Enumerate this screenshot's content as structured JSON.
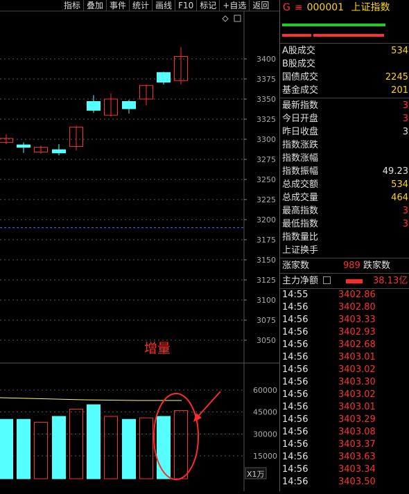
{
  "toolbar": {
    "buttons": [
      "指标",
      "叠加",
      "事件",
      "统计",
      "画线",
      "F10",
      "标记",
      "+自选",
      "返回"
    ]
  },
  "chart": {
    "price_axis": [
      "3400",
      "3375",
      "3350",
      "3325",
      "3300",
      "3275",
      "3250",
      "3225",
      "3200",
      "3175",
      "3150",
      "3125",
      "3100",
      "3075",
      "3050"
    ],
    "volume_axis": [
      "60000",
      "45000",
      "30000",
      "15000"
    ],
    "volume_unit": "X1万",
    "annotation": "增量",
    "colors": {
      "up": "#ff3030",
      "down": "#55ffff",
      "ma": "#ffff66",
      "grid": "#5a5a5a"
    }
  },
  "panel": {
    "g": "G",
    "menu": "≡",
    "code": "000001",
    "name": "上证指数",
    "stats1": [
      {
        "label": "A股成交",
        "value": "534",
        "color": "#ffd700"
      },
      {
        "label": "B股成交",
        "value": "",
        "color": "#ffd700"
      },
      {
        "label": "国债成交",
        "value": "2245",
        "color": "#ffd700"
      },
      {
        "label": "基金成交",
        "value": "201",
        "color": "#ffd700"
      }
    ],
    "stats2": [
      {
        "label": "最新指数",
        "value": "3",
        "color": "#ff3030"
      },
      {
        "label": "今日开盘",
        "value": "3",
        "color": "#ff3030"
      },
      {
        "label": "昨日收盘",
        "value": "3",
        "color": "#e0e0e0"
      },
      {
        "label": "指数涨跌",
        "value": "",
        "color": "#ff3030"
      },
      {
        "label": "指数涨幅",
        "value": "",
        "color": "#ff3030"
      },
      {
        "label": "指数振幅",
        "value": "49.23",
        "color": "#e0e0e0"
      },
      {
        "label": "总成交额",
        "value": "534",
        "color": "#ffd700"
      },
      {
        "label": "总成交量",
        "value": "464",
        "color": "#ffd700"
      },
      {
        "label": "最高指数",
        "value": "3",
        "color": "#ff3030"
      },
      {
        "label": "最低指数",
        "value": "3",
        "color": "#ff3030"
      },
      {
        "label": "指数量比",
        "value": "",
        "color": "#e0e0e0"
      },
      {
        "label": "上证换手",
        "value": "",
        "color": "#e0e0e0"
      }
    ],
    "rise_label": "涨家数",
    "rise_value": "989",
    "fall_label": "跌家数",
    "flow_label": "主力净额",
    "flow_value": "38.13亿",
    "ticks": [
      {
        "time": "14:55",
        "price": "3402.86"
      },
      {
        "time": "14:56",
        "price": "3402.80"
      },
      {
        "time": "14:56",
        "price": "3403.33"
      },
      {
        "time": "14:56",
        "price": "3402.93"
      },
      {
        "time": "14:56",
        "price": "3402.68"
      },
      {
        "time": "14:56",
        "price": "3403.01"
      },
      {
        "time": "14:56",
        "price": "3403.02"
      },
      {
        "time": "14:56",
        "price": "3403.30"
      },
      {
        "time": "14:56",
        "price": "3403.02"
      },
      {
        "time": "14:56",
        "price": "3403.01"
      },
      {
        "time": "14:56",
        "price": "3403.29"
      },
      {
        "time": "14:56",
        "price": "3403.08"
      },
      {
        "time": "14:56",
        "price": "3403.37"
      },
      {
        "time": "14:56",
        "price": "3403.63"
      },
      {
        "time": "14:56",
        "price": "3403.34"
      },
      {
        "time": "14:56",
        "price": "3403.50"
      }
    ]
  },
  "candles": [
    {
      "open": 3296,
      "close": 3301,
      "high": 3306,
      "low": 3294
    },
    {
      "open": 3293,
      "close": 3290,
      "high": 3296,
      "low": 3283
    },
    {
      "open": 3284,
      "close": 3290,
      "high": 3292,
      "low": 3282
    },
    {
      "open": 3287,
      "close": 3283,
      "high": 3294,
      "low": 3280
    },
    {
      "open": 3291,
      "close": 3315,
      "high": 3317,
      "low": 3286
    },
    {
      "open": 3347,
      "close": 3336,
      "high": 3355,
      "low": 3333
    },
    {
      "open": 3330,
      "close": 3350,
      "high": 3357,
      "low": 3328
    },
    {
      "open": 3347,
      "close": 3338,
      "high": 3349,
      "low": 3332
    },
    {
      "open": 3350,
      "close": 3367,
      "high": 3368,
      "low": 3342
    },
    {
      "open": 3383,
      "close": 3371,
      "high": 3384,
      "low": 3368
    },
    {
      "open": 3373,
      "close": 3403,
      "high": 3415,
      "low": 3368
    }
  ],
  "volumes": [
    {
      "value": 40000,
      "up": false
    },
    {
      "value": 40000,
      "up": false
    },
    {
      "value": 38000,
      "up": true
    },
    {
      "value": 42000,
      "up": false
    },
    {
      "value": 47000,
      "up": true
    },
    {
      "value": 50000,
      "up": false
    },
    {
      "value": 42000,
      "up": true
    },
    {
      "value": 40000,
      "up": false
    },
    {
      "value": 41000,
      "up": true
    },
    {
      "value": 42000,
      "up": false
    },
    {
      "value": 46000,
      "up": true
    }
  ]
}
